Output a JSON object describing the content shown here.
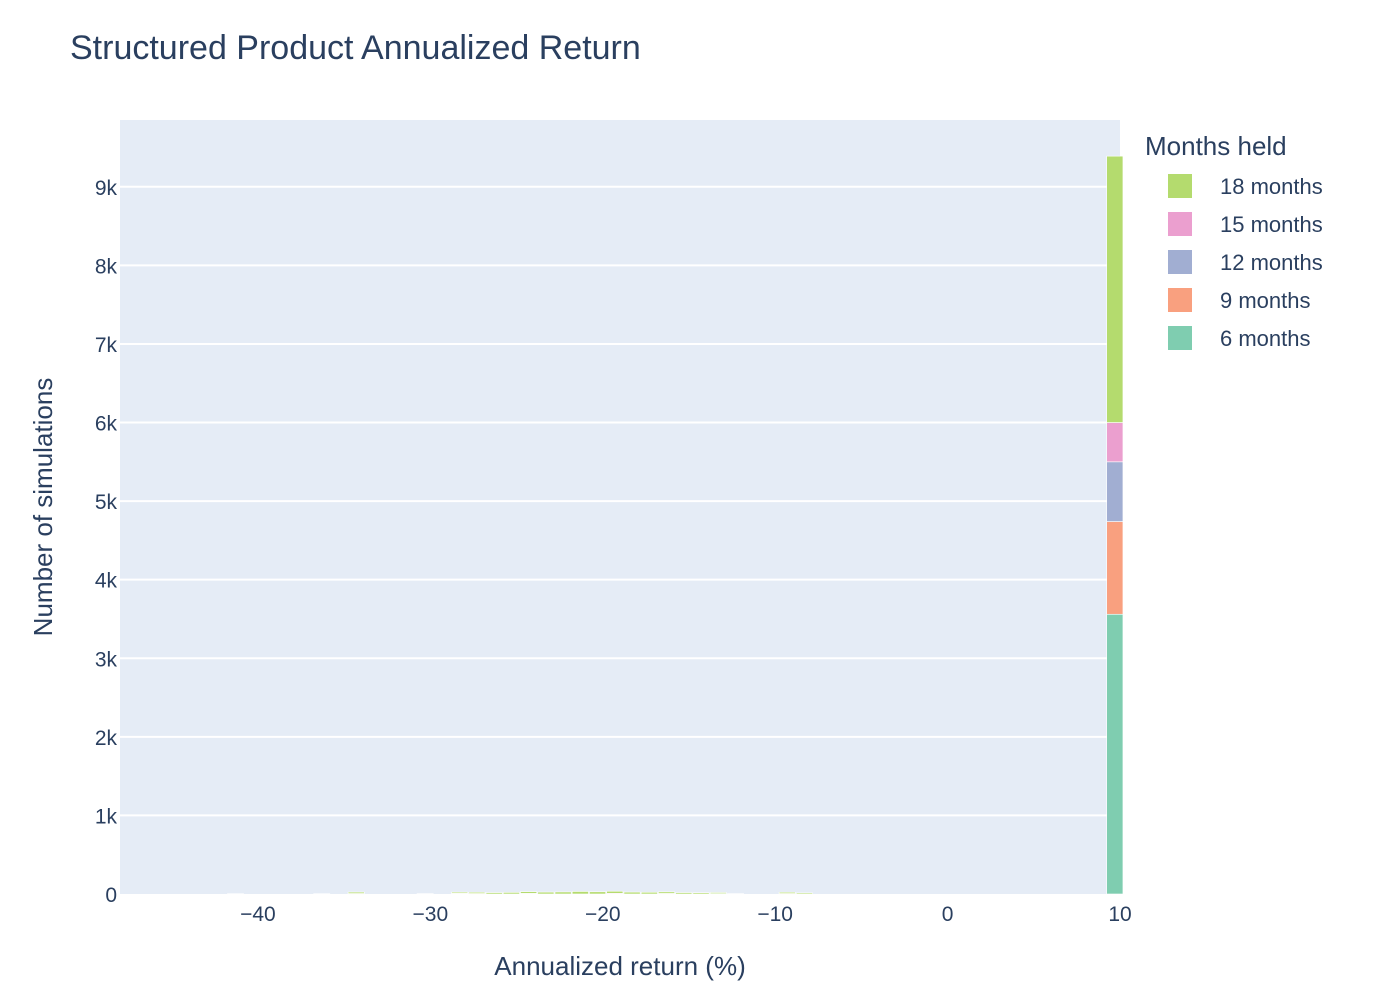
{
  "chart_data": {
    "type": "bar",
    "title": "Structured Product Annualized Return",
    "xlabel": "Annualized return (%)",
    "ylabel": "Number of simulations",
    "xlim": [
      -48,
      10
    ],
    "ylim": [
      0,
      9850
    ],
    "x_ticks": [
      -40,
      -30,
      -20,
      -10,
      0,
      10
    ],
    "x_tick_labels": [
      "−40",
      "−30",
      "−20",
      "−10",
      "0",
      "10"
    ],
    "y_ticks": [
      0,
      1000,
      2000,
      3000,
      4000,
      5000,
      6000,
      7000,
      8000,
      9000
    ],
    "y_tick_labels": [
      "0",
      "1k",
      "2k",
      "3k",
      "4k",
      "5k",
      "6k",
      "7k",
      "8k",
      "9k"
    ],
    "barmode": "stack",
    "grid": true,
    "legend": {
      "title": "Months held",
      "placement": "right",
      "order": [
        "18 months",
        "15 months",
        "12 months",
        "9 months",
        "6 months"
      ]
    },
    "bin_width": 1,
    "series": [
      {
        "name": "6 months",
        "color": "#7fcdb0",
        "bins": [
          [
            9.2,
            3560
          ]
        ]
      },
      {
        "name": "9 months",
        "color": "#f9a07f",
        "bins": [
          [
            9.2,
            1180
          ],
          [
            -41.8,
            4
          ],
          [
            -36.8,
            4
          ]
        ]
      },
      {
        "name": "12 months",
        "color": "#a1aed2",
        "bins": [
          [
            9.2,
            760
          ],
          [
            -34.8,
            6
          ],
          [
            -30.8,
            5
          ],
          [
            -28.8,
            8
          ],
          [
            -13.8,
            5
          ]
        ]
      },
      {
        "name": "15 months",
        "color": "#eb9fcf",
        "bins": [
          [
            9.2,
            500
          ],
          [
            -27.8,
            6
          ],
          [
            -24.8,
            8
          ],
          [
            -19.8,
            9
          ],
          [
            -16.8,
            7
          ],
          [
            -12.8,
            5
          ],
          [
            -9.8,
            6
          ]
        ]
      },
      {
        "name": "18 months",
        "color": "#b4db6e",
        "bins": [
          [
            9.2,
            3390
          ],
          [
            -34.8,
            18
          ],
          [
            -28.8,
            15
          ],
          [
            -27.8,
            16
          ],
          [
            -26.8,
            18
          ],
          [
            -25.8,
            20
          ],
          [
            -24.8,
            22
          ],
          [
            -23.8,
            24
          ],
          [
            -22.8,
            26
          ],
          [
            -21.8,
            32
          ],
          [
            -20.8,
            28
          ],
          [
            -19.8,
            26
          ],
          [
            -18.8,
            24
          ],
          [
            -17.8,
            22
          ],
          [
            -16.8,
            20
          ],
          [
            -15.8,
            18
          ],
          [
            -14.8,
            16
          ],
          [
            -13.8,
            14
          ],
          [
            -9.8,
            16
          ],
          [
            -8.8,
            14
          ]
        ]
      }
    ]
  }
}
